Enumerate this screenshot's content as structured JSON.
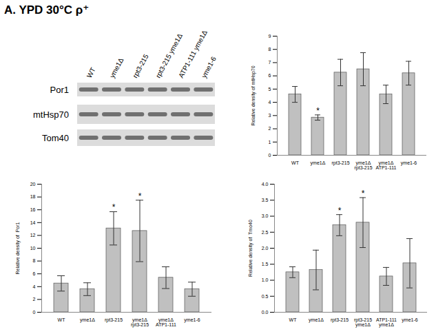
{
  "title": "A. YPD 30°C ρ⁺",
  "blot": {
    "lanes": [
      "WT",
      "yme1Δ",
      "rpt3-215",
      "rpt3-215 yme1Δ",
      "ATP1-111 yme1Δ",
      "yme1-6"
    ],
    "rows": [
      "Por1",
      "mtHsp70",
      "Tom40"
    ]
  },
  "chart_data": [
    {
      "type": "bar",
      "y_label": "Relative density of mtHsp70",
      "categories": [
        "WT",
        "yme1Δ",
        "rpt3-215",
        "yme1Δ rpt3-215",
        "yme1Δ ATP1-111",
        "yme1-6"
      ],
      "values": [
        4.6,
        2.85,
        6.25,
        6.5,
        4.6,
        6.2
      ],
      "errors": [
        0.6,
        0.2,
        1.0,
        1.25,
        0.7,
        0.9
      ],
      "annotations": [
        {
          "category": "yme1Δ",
          "text": "*"
        }
      ],
      "color": "#c0c0c0",
      "ylim": [
        0,
        9
      ],
      "yticks": [
        0,
        1,
        2,
        3,
        4,
        5,
        6,
        7,
        8,
        9
      ]
    },
    {
      "type": "bar",
      "y_label": "Relative density of  Por1",
      "categories": [
        "WT",
        "yme1Δ",
        "rpt3-215",
        "yme1Δ rpt3-215",
        "yme1Δ ATP1-111",
        "yme1-6"
      ],
      "values": [
        4.5,
        3.6,
        13.1,
        12.7,
        5.4,
        3.6
      ],
      "errors": [
        1.2,
        1.0,
        2.6,
        4.8,
        1.7,
        1.1
      ],
      "annotations": [
        {
          "category": "rpt3-215",
          "text": "*"
        },
        {
          "category": "yme1Δ rpt3-215",
          "text": "*"
        }
      ],
      "color": "#c0c0c0",
      "ylim": [
        0,
        20
      ],
      "yticks": [
        0,
        2,
        4,
        6,
        8,
        10,
        12,
        14,
        16,
        18,
        20
      ]
    },
    {
      "type": "bar",
      "y_label": "Relative density of  Tmo40",
      "categories": [
        "WT",
        "yme1Δ",
        "rpt3-215",
        "rpt3-215 yme1Δ",
        "ATP1-111 yme1Δ",
        "yme1-6"
      ],
      "values": [
        1.25,
        1.32,
        2.72,
        2.8,
        1.12,
        1.53
      ],
      "errors": [
        0.17,
        0.62,
        0.33,
        0.78,
        0.28,
        0.77
      ],
      "annotations": [
        {
          "category": "rpt3-215",
          "text": "*"
        },
        {
          "category": "rpt3-215 yme1Δ",
          "text": "*"
        }
      ],
      "color": "#c0c0c0",
      "ylim": [
        0,
        4
      ],
      "yticks": [
        0,
        0.5,
        1,
        1.5,
        2,
        2.5,
        3,
        3.5,
        4
      ]
    }
  ]
}
